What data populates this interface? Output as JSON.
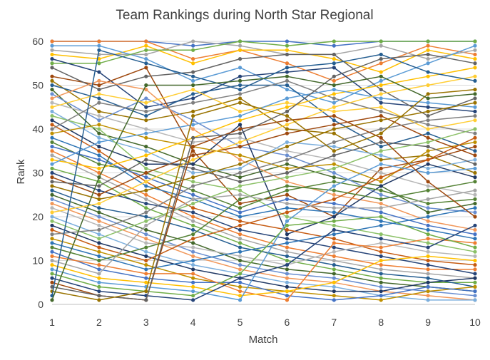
{
  "chart_data": {
    "type": "line",
    "title": "Team Rankings during North Star Regional",
    "xlabel": "Match",
    "ylabel": "Rank",
    "x": [
      1,
      2,
      3,
      4,
      5,
      6,
      7,
      8,
      9,
      10
    ],
    "xlim": [
      1,
      10
    ],
    "ylim": [
      0,
      60
    ],
    "yticks": [
      0,
      10,
      20,
      30,
      40,
      50,
      60
    ],
    "grid": {
      "horizontal": true,
      "vertical": false
    },
    "legend": "none",
    "markers": true,
    "series": [
      {
        "color": "#4472C4",
        "values": [
          60,
          60,
          60,
          59,
          60,
          60,
          59,
          60,
          60,
          60
        ]
      },
      {
        "color": "#ED7D31",
        "values": [
          60,
          60,
          60,
          56,
          58,
          55,
          51,
          55,
          59,
          57
        ]
      },
      {
        "color": "#A5A5A5",
        "values": [
          58,
          57,
          57,
          60,
          59,
          57,
          57,
          59,
          56,
          58
        ]
      },
      {
        "color": "#FFC000",
        "values": [
          57,
          56,
          59,
          55,
          58,
          58,
          56,
          53,
          58,
          56
        ]
      },
      {
        "color": "#5B9BD5",
        "values": [
          59,
          59,
          56,
          51,
          54,
          49,
          46,
          51,
          55,
          59
        ]
      },
      {
        "color": "#70AD47",
        "values": [
          55,
          55,
          58,
          58,
          60,
          59,
          60,
          60,
          60,
          60
        ]
      },
      {
        "color": "#264478",
        "values": [
          56,
          53,
          45,
          47,
          52,
          53,
          54,
          46,
          45,
          44
        ]
      },
      {
        "color": "#9E480E",
        "values": [
          52,
          50,
          54,
          35,
          23,
          25,
          20,
          31,
          33,
          36
        ]
      },
      {
        "color": "#636363",
        "values": [
          54,
          49,
          52,
          53,
          56,
          57,
          57,
          49,
          43,
          47
        ]
      },
      {
        "color": "#997300",
        "values": [
          51,
          44,
          42,
          44,
          47,
          40,
          39,
          33,
          34,
          30
        ]
      },
      {
        "color": "#255E91",
        "values": [
          50,
          47,
          43,
          48,
          50,
          50,
          42,
          36,
          39,
          35
        ]
      },
      {
        "color": "#43682B",
        "values": [
          49,
          39,
          36,
          32,
          29,
          32,
          29,
          27,
          21,
          23
        ]
      },
      {
        "color": "#698ED0",
        "values": [
          48,
          42,
          47,
          42,
          36,
          34,
          30,
          25,
          22,
          21
        ]
      },
      {
        "color": "#F1975A",
        "values": [
          47,
          51,
          49,
          40,
          33,
          28,
          25,
          23,
          19,
          17
        ]
      },
      {
        "color": "#B7B7B7",
        "values": [
          46,
          43,
          40,
          37,
          38,
          35,
          33,
          30,
          27,
          25
        ]
      },
      {
        "color": "#FFCD33",
        "values": [
          45,
          48,
          46,
          49,
          44,
          46,
          44,
          45,
          40,
          42
        ]
      },
      {
        "color": "#7CAFDD",
        "values": [
          44,
          38,
          35,
          30,
          31,
          37,
          36,
          34,
          31,
          33
        ]
      },
      {
        "color": "#8CC168",
        "values": [
          43,
          40,
          31,
          28,
          26,
          20,
          18,
          16,
          14,
          12
        ]
      },
      {
        "color": "#203864",
        "values": [
          42,
          36,
          32,
          32,
          41,
          16,
          20,
          27,
          32,
          29
        ]
      },
      {
        "color": "#C55A11",
        "values": [
          41,
          35,
          28,
          22,
          19,
          17,
          15,
          12,
          10,
          9
        ]
      },
      {
        "color": "#7F7F7F",
        "values": [
          40,
          46,
          44,
          46,
          48,
          51,
          47,
          44,
          41,
          39
        ]
      },
      {
        "color": "#BF9000",
        "values": [
          39,
          41,
          38,
          36,
          34,
          31,
          32,
          28,
          35,
          37
        ]
      },
      {
        "color": "#2E75B6",
        "values": [
          38,
          34,
          27,
          24,
          20,
          22,
          21,
          19,
          17,
          15
        ]
      },
      {
        "color": "#548235",
        "values": [
          37,
          32,
          30,
          26,
          22,
          26,
          28,
          26,
          23,
          24
        ]
      },
      {
        "color": "#4472C4",
        "values": [
          36,
          33,
          29,
          25,
          21,
          24,
          23,
          21,
          18,
          16
        ]
      },
      {
        "color": "#ED7D31",
        "values": [
          35,
          30,
          25,
          20,
          16,
          13,
          11,
          9,
          8,
          8
        ]
      },
      {
        "color": "#A5A5A5",
        "values": [
          34,
          29,
          24,
          19,
          15,
          12,
          10,
          8,
          7,
          6
        ]
      },
      {
        "color": "#FFC000",
        "values": [
          33,
          31,
          34,
          38,
          42,
          45,
          48,
          50,
          52,
          54
        ]
      },
      {
        "color": "#5B9BD5",
        "values": [
          32,
          37,
          39,
          41,
          43,
          47,
          49,
          47,
          46,
          45
        ]
      },
      {
        "color": "#70AD47",
        "values": [
          31,
          28,
          22,
          18,
          14,
          10,
          8,
          6,
          5,
          5
        ]
      },
      {
        "color": "#264478",
        "values": [
          30,
          26,
          23,
          21,
          17,
          15,
          13,
          11,
          9,
          7
        ]
      },
      {
        "color": "#9E480E",
        "values": [
          29,
          25,
          30,
          34,
          36,
          39,
          41,
          43,
          38,
          34
        ]
      },
      {
        "color": "#636363",
        "values": [
          28,
          27,
          33,
          31,
          28,
          30,
          34,
          37,
          36,
          32
        ]
      },
      {
        "color": "#997300",
        "values": [
          27,
          24,
          26,
          29,
          32,
          36,
          40,
          42,
          44,
          46
        ]
      },
      {
        "color": "#255E91",
        "values": [
          26,
          22,
          20,
          17,
          13,
          11,
          9,
          7,
          6,
          4
        ]
      },
      {
        "color": "#43682B",
        "values": [
          25,
          21,
          17,
          14,
          10,
          8,
          7,
          5,
          4,
          3
        ]
      },
      {
        "color": "#698ED0",
        "values": [
          24,
          20,
          16,
          12,
          9,
          7,
          6,
          4,
          3,
          2
        ]
      },
      {
        "color": "#F1975A",
        "values": [
          23,
          19,
          15,
          11,
          8,
          6,
          5,
          3,
          2,
          1
        ]
      },
      {
        "color": "#B7B7B7",
        "values": [
          22,
          18,
          14,
          13,
          11,
          9,
          12,
          14,
          12,
          11
        ]
      },
      {
        "color": "#FFCD33",
        "values": [
          21,
          23,
          28,
          33,
          37,
          41,
          45,
          48,
          50,
          52
        ]
      },
      {
        "color": "#7CAFDD",
        "values": [
          20,
          16,
          12,
          9,
          7,
          5,
          4,
          2,
          1,
          1
        ]
      },
      {
        "color": "#8CC168",
        "values": [
          19,
          15,
          19,
          23,
          27,
          29,
          31,
          35,
          37,
          40
        ]
      },
      {
        "color": "#203864",
        "values": [
          18,
          14,
          11,
          8,
          6,
          4,
          3,
          3,
          5,
          6
        ]
      },
      {
        "color": "#C55A11",
        "values": [
          17,
          13,
          10,
          15,
          18,
          21,
          24,
          29,
          33,
          38
        ]
      },
      {
        "color": "#7F7F7F",
        "values": [
          16,
          17,
          21,
          27,
          30,
          33,
          37,
          40,
          42,
          43
        ]
      },
      {
        "color": "#BF9000",
        "values": [
          15,
          12,
          9,
          6,
          4,
          3,
          2,
          1,
          3,
          4
        ]
      },
      {
        "color": "#2E75B6",
        "values": [
          14,
          11,
          8,
          10,
          12,
          14,
          16,
          18,
          20,
          22
        ]
      },
      {
        "color": "#548235",
        "values": [
          13,
          10,
          13,
          16,
          24,
          27,
          26,
          24,
          26,
          28
        ]
      },
      {
        "color": "#4472C4",
        "values": [
          12,
          8,
          6,
          5,
          5,
          2,
          1,
          2,
          4,
          3
        ]
      },
      {
        "color": "#ED7D31",
        "values": [
          11,
          9,
          7,
          7,
          3,
          1,
          14,
          13,
          15,
          14
        ]
      },
      {
        "color": "#A5A5A5",
        "values": [
          10,
          7,
          18,
          24,
          25,
          23,
          22,
          22,
          24,
          26
        ]
      },
      {
        "color": "#FFC000",
        "values": [
          9,
          6,
          5,
          4,
          2,
          3,
          5,
          10,
          11,
          10
        ]
      },
      {
        "color": "#5B9BD5",
        "values": [
          8,
          5,
          4,
          3,
          1,
          19,
          27,
          32,
          30,
          31
        ]
      },
      {
        "color": "#70AD47",
        "values": [
          7,
          4,
          3,
          2,
          7,
          18,
          19,
          20,
          16,
          13
        ]
      },
      {
        "color": "#264478",
        "values": [
          6,
          3,
          2,
          1,
          6,
          9,
          17,
          15,
          13,
          18
        ]
      },
      {
        "color": "#9E480E",
        "values": [
          5,
          2,
          1,
          36,
          40,
          42,
          43,
          38,
          28,
          20
        ]
      },
      {
        "color": "#636363",
        "values": [
          4,
          2,
          1,
          38,
          39,
          44,
          52,
          56,
          57,
          55
        ]
      },
      {
        "color": "#997300",
        "values": [
          3,
          1,
          3,
          43,
          46,
          43,
          35,
          39,
          48,
          49
        ]
      },
      {
        "color": "#255E91",
        "values": [
          2,
          58,
          55,
          52,
          49,
          54,
          55,
          57,
          53,
          51
        ]
      },
      {
        "color": "#43682B",
        "values": [
          1,
          29,
          50,
          50,
          51,
          52,
          50,
          52,
          47,
          48
        ]
      }
    ]
  }
}
